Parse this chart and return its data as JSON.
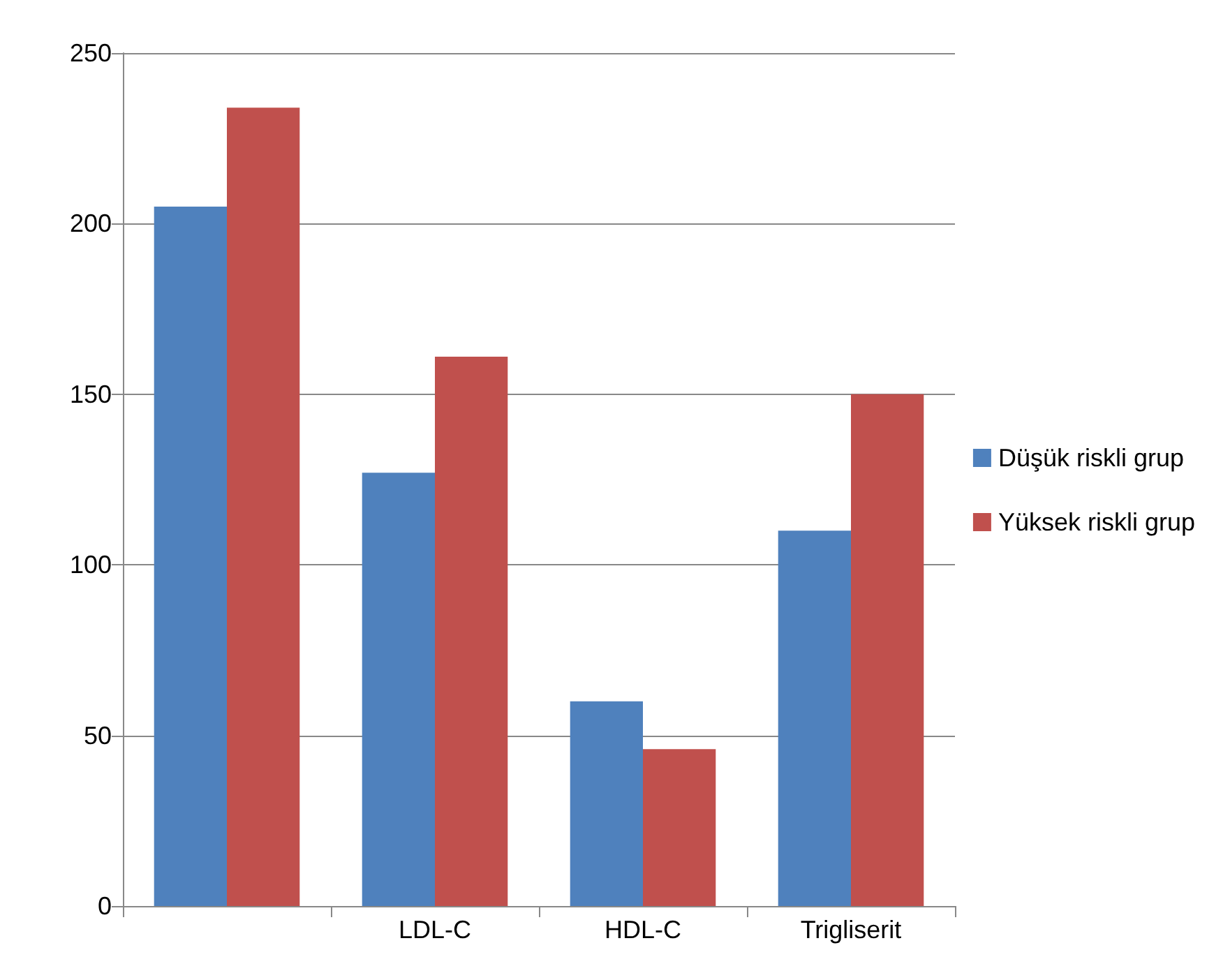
{
  "chart_data": {
    "type": "bar",
    "categories": [
      null,
      "LDL-C",
      "HDL-C",
      "Trigliserit"
    ],
    "series": [
      {
        "name": "Düşük riskli grup",
        "color": "#4f81bd",
        "values": [
          205,
          127,
          60,
          110
        ]
      },
      {
        "name": "Yüksek riskli grup",
        "color": "#c0504d",
        "values": [
          234,
          161,
          46,
          150
        ]
      }
    ],
    "ylim": [
      0,
      250
    ],
    "yticks": [
      0,
      50,
      100,
      150,
      200,
      250
    ],
    "grid": "y",
    "legend": "right"
  }
}
